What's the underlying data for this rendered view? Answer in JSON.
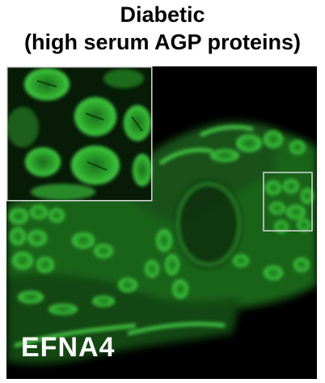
{
  "title_line1": "Diabetic",
  "title_line2": "(high serum AGP proteins)",
  "stain_label": "EFNA4",
  "colors": {
    "stain": "#3fd23f",
    "background": "#000000",
    "inset_border": "#d8d8d8"
  }
}
